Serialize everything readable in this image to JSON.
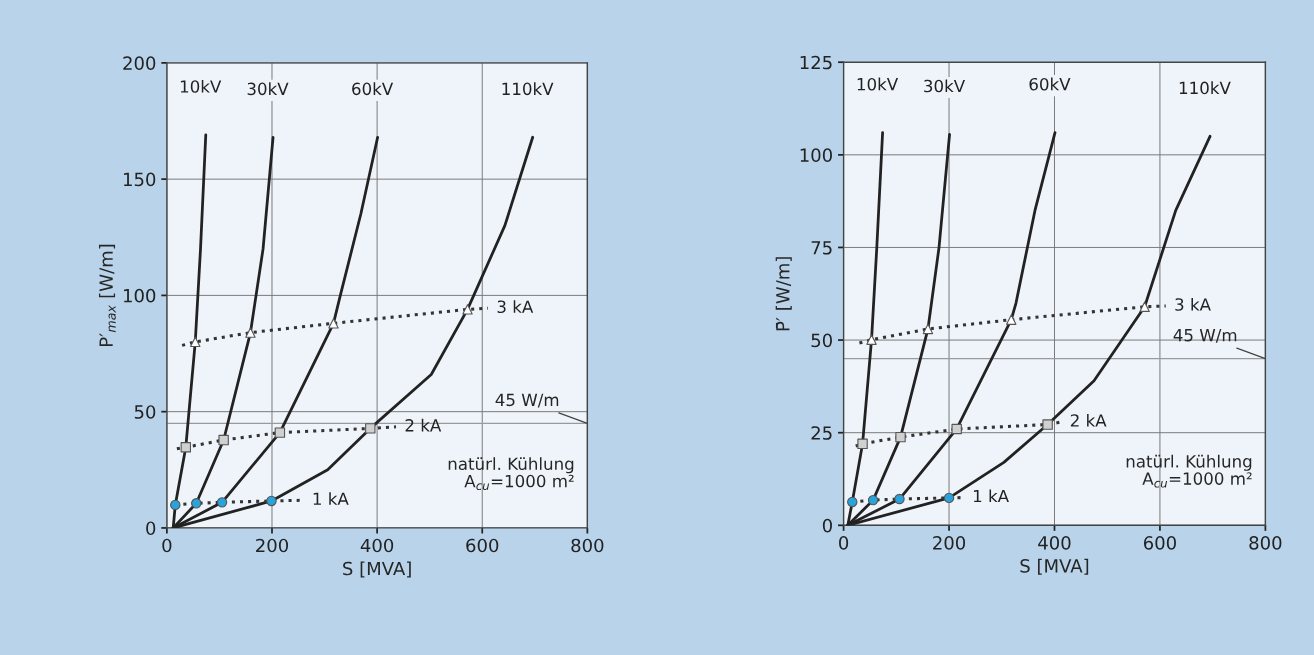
{
  "chart_data": [
    {
      "type": "line",
      "xlabel": "S [MVA]",
      "ylabel": "P′$_{max}$ [W/m]",
      "xlim": [
        0,
        800
      ],
      "ylim": [
        0,
        200
      ],
      "xticks": [
        0,
        200,
        400,
        600,
        800
      ],
      "yticks": [
        0,
        50,
        100,
        150,
        200
      ],
      "grid": true,
      "legend": false,
      "series": [
        {
          "name": "10kV",
          "color": "#222222",
          "line_style": "solid",
          "x": [
            12,
            16,
            36,
            54,
            64,
            74
          ],
          "values": [
            0,
            9.9,
            34.7,
            80,
            120,
            169
          ]
        },
        {
          "name": "30kV",
          "color": "#222222",
          "line_style": "solid",
          "x": [
            12,
            56,
            108,
            159,
            183,
            202
          ],
          "values": [
            0,
            10.6,
            37.8,
            84,
            120,
            168
          ]
        },
        {
          "name": "60kV",
          "color": "#222222",
          "line_style": "solid",
          "x": [
            12,
            105,
            215,
            317,
            330,
            369,
            401
          ],
          "values": [
            0,
            11,
            41,
            88,
            100,
            135,
            168
          ]
        },
        {
          "name": "110kV",
          "color": "#222222",
          "line_style": "solid",
          "x": [
            12,
            199,
            306,
            387,
            503,
            572,
            643,
            696
          ],
          "values": [
            0,
            11.6,
            25,
            42.8,
            66,
            94,
            130,
            168
          ]
        },
        {
          "name": "1 kA",
          "color": "#333333",
          "line_style": "dotted",
          "x": [
            16,
            56,
            105,
            199,
            260
          ],
          "values": [
            9.9,
            10.6,
            11,
            11.6,
            11.9
          ]
        },
        {
          "name": "2 kA",
          "color": "#333333",
          "line_style": "dotted",
          "x": [
            19,
            36,
            108,
            215,
            387,
            436
          ],
          "values": [
            34,
            34.7,
            37.8,
            41,
            42.8,
            43.5
          ]
        },
        {
          "name": "3 kA",
          "color": "#333333",
          "line_style": "dotted",
          "x": [
            29,
            54,
            159,
            317,
            572,
            611
          ],
          "values": [
            78.5,
            80,
            84,
            88,
            94,
            94.5
          ]
        },
        {
          "type": "scatter",
          "marker": "circle",
          "color": "#29a3dc",
          "x": [
            16,
            56,
            105,
            199
          ],
          "values": [
            9.9,
            10.6,
            11,
            11.6
          ]
        },
        {
          "type": "scatter",
          "marker": "square",
          "color": "#d0d0d0",
          "x": [
            36,
            108,
            215,
            387
          ],
          "values": [
            34.7,
            37.8,
            41,
            42.8
          ]
        },
        {
          "type": "scatter",
          "marker": "triangle",
          "color": "#ffffff",
          "x": [
            54,
            159,
            317,
            572
          ],
          "values": [
            80,
            84,
            88,
            94
          ]
        }
      ],
      "ref_lines": [
        {
          "axis": "y",
          "value": 45,
          "label": "45 W/m",
          "color": "#9a9a9a"
        }
      ],
      "annotations": [
        "natürl. Kühlung\nA$_{cu}$=1000 m²"
      ]
    },
    {
      "type": "line",
      "xlabel": "S [MVA]",
      "ylabel": "P̄′ [W/m]",
      "xlim": [
        0,
        800
      ],
      "ylim": [
        0,
        125
      ],
      "xticks": [
        0,
        200,
        400,
        600,
        800
      ],
      "yticks": [
        0,
        25,
        50,
        75,
        100,
        125
      ],
      "grid": true,
      "legend": false,
      "series": [
        {
          "name": "10kV",
          "color": "#222222",
          "line_style": "solid",
          "x": [
            8,
            16.5,
            36,
            53,
            63,
            74
          ],
          "values": [
            0,
            6.3,
            22,
            50.1,
            75,
            106
          ]
        },
        {
          "name": "30kV",
          "color": "#222222",
          "line_style": "solid",
          "x": [
            8,
            56,
            108,
            160,
            181,
            201
          ],
          "values": [
            0,
            6.8,
            23.8,
            53,
            75,
            105.5
          ]
        },
        {
          "name": "60kV",
          "color": "#222222",
          "line_style": "solid",
          "x": [
            8,
            106,
            214.5,
            318,
            327,
            363,
            401
          ],
          "values": [
            0,
            7.1,
            26,
            55.5,
            60,
            85,
            106
          ]
        },
        {
          "name": "110kV",
          "color": "#222222",
          "line_style": "solid",
          "x": [
            8,
            200,
            304,
            387,
            475,
            571,
            630,
            695
          ],
          "values": [
            0,
            7.4,
            17,
            27.2,
            39,
            59,
            85,
            105
          ]
        },
        {
          "name": "1 kA",
          "color": "#333333",
          "line_style": "dotted",
          "x": [
            16.5,
            56,
            106,
            200,
            228
          ],
          "values": [
            6.3,
            6.8,
            7.1,
            7.4,
            7.5
          ]
        },
        {
          "name": "2 kA",
          "color": "#333333",
          "line_style": "dotted",
          "x": [
            23,
            36,
            108,
            214.5,
            387,
            413
          ],
          "values": [
            21.4,
            22,
            23.8,
            26,
            27.2,
            27.9
          ]
        },
        {
          "name": "3 kA",
          "color": "#333333",
          "line_style": "dotted",
          "x": [
            30,
            53,
            160,
            318,
            571,
            611
          ],
          "values": [
            49.2,
            50.1,
            53,
            55.5,
            59,
            59.2
          ]
        },
        {
          "type": "scatter",
          "marker": "circle",
          "color": "#29a3dc",
          "x": [
            16.5,
            56,
            106,
            200
          ],
          "values": [
            6.3,
            6.8,
            7.1,
            7.4
          ]
        },
        {
          "type": "scatter",
          "marker": "square",
          "color": "#d0d0d0",
          "x": [
            36,
            108,
            214.5,
            387
          ],
          "values": [
            22,
            23.8,
            26,
            27.2
          ]
        },
        {
          "type": "scatter",
          "marker": "triangle",
          "color": "#ffffff",
          "x": [
            53,
            160,
            318,
            571
          ],
          "values": [
            50.1,
            53,
            55.5,
            59
          ]
        }
      ],
      "ref_lines": [
        {
          "axis": "y",
          "value": 45,
          "label": "45 W/m",
          "color": "#9a9a9a"
        }
      ],
      "annotations": [
        "natürl. Kühlung\nA$_{cu}$=1000 m²"
      ]
    }
  ]
}
